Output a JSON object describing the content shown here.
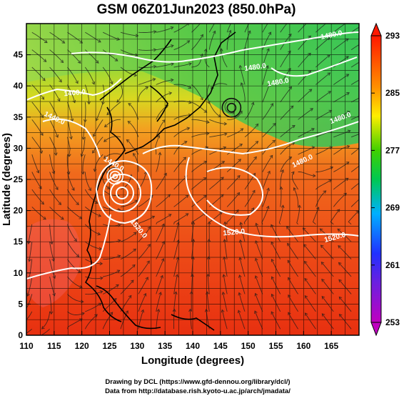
{
  "chart_data": {
    "type": "heatmap",
    "title": "GSM 06Z01Jun2023 (850.0hPa)",
    "xlabel": "Longitude (degrees)",
    "ylabel": "Latitude  (degrees)",
    "xlim": [
      110,
      170
    ],
    "ylim": [
      0,
      50
    ],
    "x_ticks": [
      110,
      115,
      120,
      125,
      130,
      135,
      140,
      145,
      150,
      155,
      160,
      165
    ],
    "y_ticks": [
      0,
      5,
      10,
      15,
      20,
      25,
      30,
      35,
      40,
      45
    ],
    "grid": true,
    "colorbar": {
      "ticks": [
        253,
        261,
        269,
        277,
        285,
        293
      ],
      "range": [
        253,
        293
      ],
      "colors": [
        "#c000c0",
        "#2020ff",
        "#00c0ff",
        "#00d000",
        "#ffee00",
        "#ff8000",
        "#ff2000"
      ]
    },
    "contours": [
      {
        "label": "1400.0"
      },
      {
        "label": "1440.0"
      },
      {
        "label": "1440.0"
      },
      {
        "label": "1480.0"
      },
      {
        "label": "1480.0"
      },
      {
        "label": "1480.0"
      },
      {
        "label": "1480.0"
      },
      {
        "label": "1480.0"
      },
      {
        "label": "1520.0"
      },
      {
        "label": "1520.0"
      },
      {
        "label": "1520.0"
      }
    ],
    "features": {
      "typhoon_center": {
        "lon": 126,
        "lat": 25.5
      },
      "low_center": {
        "lon": 147,
        "lat": 36.5
      }
    }
  },
  "footer": {
    "line1": "Drawing by DCL (https://www.gfd-dennou.org/library/dcl/)",
    "line2": "Data from http://database.rish.kyoto-u.ac.jp/arch/jmadata/"
  }
}
